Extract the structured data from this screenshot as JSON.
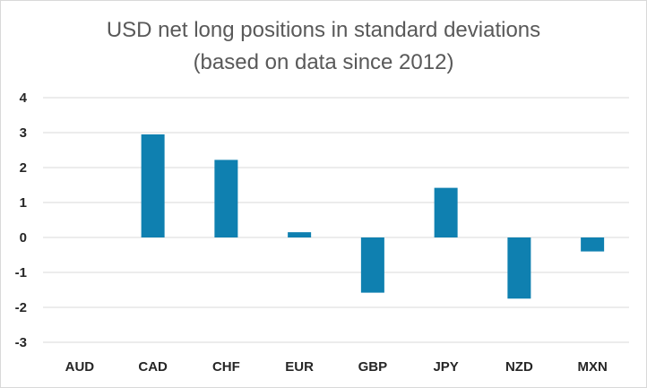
{
  "chart_data": {
    "type": "bar",
    "title": "USD net long positions in standard deviations",
    "subtitle": "(based on data since 2012)",
    "categories": [
      "AUD",
      "CAD",
      "CHF",
      "EUR",
      "GBP",
      "JPY",
      "NZD",
      "MXN"
    ],
    "values": [
      0.0,
      2.95,
      2.22,
      0.15,
      -1.58,
      1.42,
      -1.75,
      -0.4
    ],
    "ylim": [
      -3,
      4
    ],
    "yticks": [
      "4",
      "3",
      "2",
      "1",
      "0",
      "-1",
      "-2",
      "-3"
    ],
    "grid": true,
    "bar_color": "#0f80b0",
    "grid_color": "#d9d9d9"
  }
}
